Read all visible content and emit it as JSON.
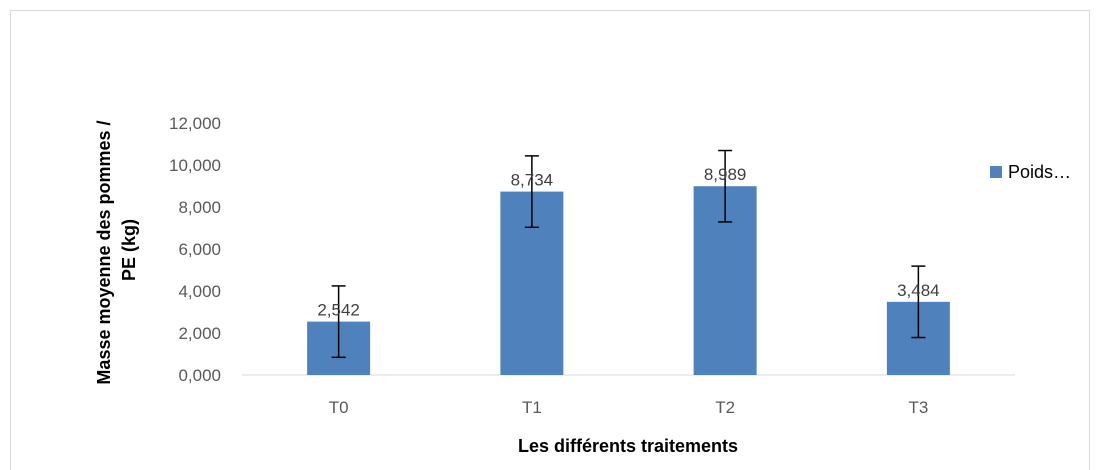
{
  "chart_data": {
    "type": "bar",
    "categories": [
      "T0",
      "T1",
      "T2",
      "T3"
    ],
    "series": [
      {
        "name": "Poids…",
        "values": [
          2.542,
          8.734,
          8.989,
          3.484
        ],
        "data_labels": [
          "2,542",
          "8,734",
          "8,989",
          "3,484"
        ],
        "error": [
          1.7,
          1.7,
          1.7,
          1.7
        ],
        "color": "#4f81bd"
      }
    ],
    "title": "",
    "xlabel": "Les différents traitements",
    "ylabel": "Masse moyenne des pommes / PE (kg)",
    "ylim": [
      0,
      12
    ],
    "yticks": [
      0,
      2,
      4,
      6,
      8,
      10,
      12
    ],
    "ytick_labels": [
      "0,000",
      "2,000",
      "4,000",
      "6,000",
      "8,000",
      "10,000",
      "12,000"
    ],
    "grid": false,
    "legend": "right"
  }
}
